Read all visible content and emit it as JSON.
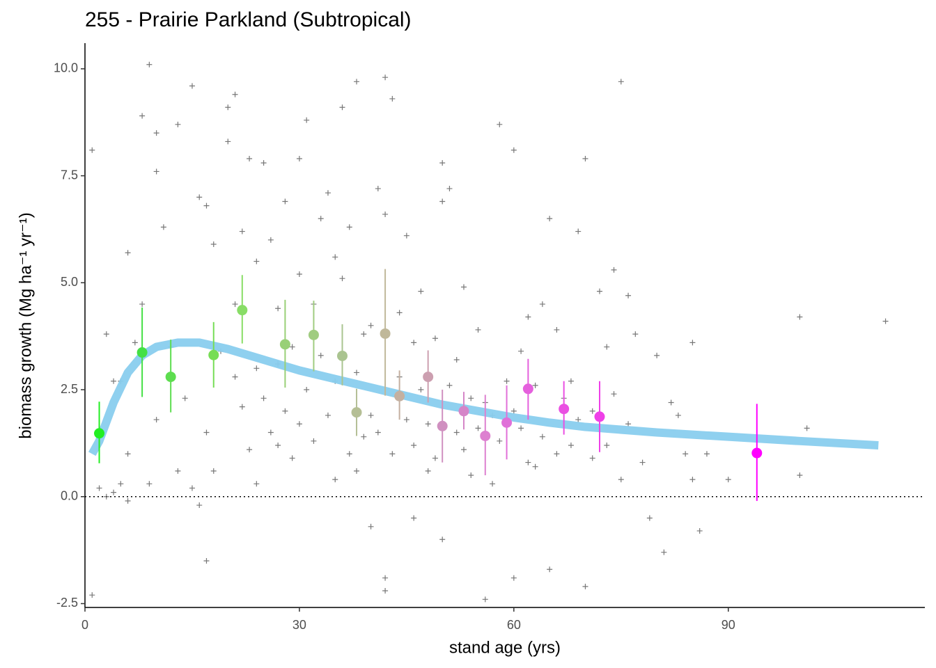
{
  "chart_data": {
    "type": "scatter",
    "title": "255 - Prairie Parkland (Subtropical)",
    "xlabel": "stand age (yrs)",
    "ylabel": "biomass growth (Mg ha⁻¹ yr⁻¹)",
    "xlim": [
      0,
      117.5
    ],
    "ylim": [
      -2.59,
      10.6
    ],
    "xticks": [
      0,
      30,
      60,
      90
    ],
    "yticks": [
      {
        "value": -2.5,
        "label": "-2.5"
      },
      {
        "value": 0,
        "label": "0.0"
      },
      2.5,
      {
        "value": 5,
        "label": "5.0"
      },
      7.5,
      {
        "value": 10,
        "label": "10.0"
      }
    ],
    "hline": 0,
    "points": {
      "color": "#555555",
      "x": [
        1,
        1,
        2,
        3,
        3,
        4,
        4,
        5,
        5,
        6,
        6,
        6,
        7,
        8,
        8,
        9,
        9,
        10,
        10,
        10,
        11,
        12,
        13,
        13,
        14,
        15,
        15,
        16,
        16,
        17,
        17,
        17,
        18,
        18,
        19,
        20,
        20,
        21,
        21,
        22,
        22,
        23,
        24,
        24,
        25,
        26,
        27,
        27,
        28,
        29,
        30,
        30,
        30,
        31,
        32,
        33,
        34,
        35,
        35,
        36,
        36,
        37,
        38,
        38,
        39,
        40,
        40,
        41,
        42,
        42,
        42,
        42,
        43,
        44,
        45,
        46,
        46,
        47,
        48,
        49,
        50,
        50,
        50,
        51,
        52,
        53,
        54,
        55,
        56,
        56,
        57,
        58,
        59,
        60,
        60,
        61,
        62,
        63,
        64,
        65,
        65,
        66,
        67,
        68,
        69,
        70,
        70,
        71,
        72,
        73,
        74,
        75,
        75,
        76,
        77,
        78,
        79,
        80,
        81,
        82,
        83,
        84,
        85,
        85,
        86,
        87,
        90,
        100,
        100,
        101,
        112,
        40,
        41,
        43,
        44,
        45,
        46,
        47,
        48,
        49,
        51,
        52,
        53,
        54,
        55,
        57,
        58,
        60,
        61,
        62,
        63,
        64,
        66,
        68,
        69,
        71,
        73,
        74,
        76,
        21,
        23,
        24,
        25,
        26,
        27,
        28,
        29,
        31,
        32,
        33,
        34,
        35,
        37,
        38,
        39
      ],
      "y": [
        8.1,
        -2.3,
        0.2,
        0,
        3.8,
        2.7,
        0.1,
        0.3,
        2.7,
        5.7,
        1,
        -0.1,
        3.6,
        8.9,
        4.5,
        10.1,
        0.3,
        8.5,
        7.6,
        1.8,
        6.3,
        3.5,
        8.7,
        0.6,
        2.3,
        9.6,
        0.2,
        7,
        -0.2,
        6.8,
        1.5,
        -1.5,
        5.9,
        0.6,
        3.4,
        9.1,
        8.3,
        9.4,
        4.5,
        6.2,
        2.1,
        7.9,
        5.5,
        0.3,
        7.8,
        6,
        4.4,
        1.2,
        6.9,
        3.5,
        5.2,
        7.9,
        1.7,
        8.8,
        4.5,
        6.5,
        7.1,
        5.6,
        0.4,
        9.1,
        5.1,
        6.3,
        9.7,
        0.6,
        3.8,
        4,
        -0.7,
        7.2,
        9.8,
        6.6,
        -1.9,
        -2.2,
        9.3,
        4.3,
        6.1,
        3.6,
        -0.5,
        4.8,
        0.6,
        3.7,
        7.8,
        6.9,
        -1.0,
        7.2,
        3.2,
        4.9,
        0.5,
        3.9,
        2.2,
        -2.4,
        0.3,
        8.7,
        2.7,
        8.1,
        -1.9,
        3.4,
        4.2,
        0.7,
        4.5,
        6.5,
        -1.7,
        3.9,
        2.3,
        1.2,
        6.2,
        7.9,
        -2.1,
        0.9,
        4.8,
        3.5,
        5.3,
        9.7,
        0.4,
        4.7,
        3.8,
        0.8,
        -0.5,
        3.3,
        -1.3,
        2.2,
        1.9,
        1,
        3.6,
        0.4,
        -0.8,
        1.0,
        0.4,
        0.5,
        4.2,
        1.6,
        4.1,
        1.9,
        1.5,
        1.0,
        2.8,
        1.8,
        1.2,
        2.5,
        1.7,
        0.9,
        2.6,
        1.5,
        1.1,
        2.3,
        1.6,
        1.9,
        1.3,
        2.0,
        1.6,
        0.8,
        2.6,
        1.4,
        1.0,
        2.7,
        1.8,
        2.0,
        1.2,
        2.4,
        1.7,
        2.8,
        1.1,
        3.0,
        2.3,
        1.5,
        3.1,
        2.0,
        0.9,
        2.5,
        1.3,
        3.3,
        1.9,
        2.7,
        1.0,
        2.9,
        1.4
      ]
    },
    "means": {
      "x": [
        2,
        8,
        12,
        18,
        22,
        28,
        32,
        36,
        38,
        42,
        44,
        48,
        50,
        53,
        56,
        59,
        62,
        67,
        72,
        94
      ],
      "y": [
        1.48,
        3.37,
        2.8,
        3.31,
        4.36,
        3.56,
        3.78,
        3.29,
        1.97,
        3.81,
        2.35,
        2.8,
        1.65,
        2.0,
        1.42,
        1.73,
        2.52,
        2.05,
        1.87,
        1.02
      ],
      "lower": [
        0.78,
        2.33,
        1.97,
        2.55,
        3.58,
        2.55,
        2.93,
        2.6,
        1.42,
        2.36,
        1.8,
        2.2,
        0.8,
        1.57,
        0.5,
        0.87,
        1.8,
        1.45,
        1.04,
        -0.1
      ],
      "upper": [
        2.22,
        4.42,
        3.67,
        4.08,
        5.18,
        4.6,
        4.58,
        4.03,
        2.52,
        5.32,
        2.95,
        3.42,
        2.5,
        2.45,
        2.38,
        2.6,
        3.22,
        2.7,
        2.7,
        2.17
      ],
      "colors": [
        "#22ee22",
        "#44e044",
        "#5ddd4f",
        "#77dd55",
        "#88dd66",
        "#99d077",
        "#a0cc80",
        "#aac490",
        "#b5bf95",
        "#c0b89a",
        "#c4b0a0",
        "#cc9fb0",
        "#d090c0",
        "#d585c8",
        "#dd80d0",
        "#e070d8",
        "#e560dd",
        "#ea50e2",
        "#ef40e8",
        "#ff00ff"
      ]
    },
    "curve": {
      "color": "#89cdee",
      "x": [
        1,
        2,
        4,
        6,
        8,
        10,
        13,
        16,
        20,
        25,
        30,
        35,
        40,
        45,
        50,
        55,
        60,
        65,
        70,
        80,
        90,
        100,
        111
      ],
      "y": [
        1.0,
        1.3,
        2.2,
        2.9,
        3.3,
        3.5,
        3.6,
        3.6,
        3.45,
        3.2,
        2.95,
        2.75,
        2.55,
        2.35,
        2.15,
        2.0,
        1.85,
        1.73,
        1.63,
        1.5,
        1.4,
        1.3,
        1.2
      ]
    }
  }
}
